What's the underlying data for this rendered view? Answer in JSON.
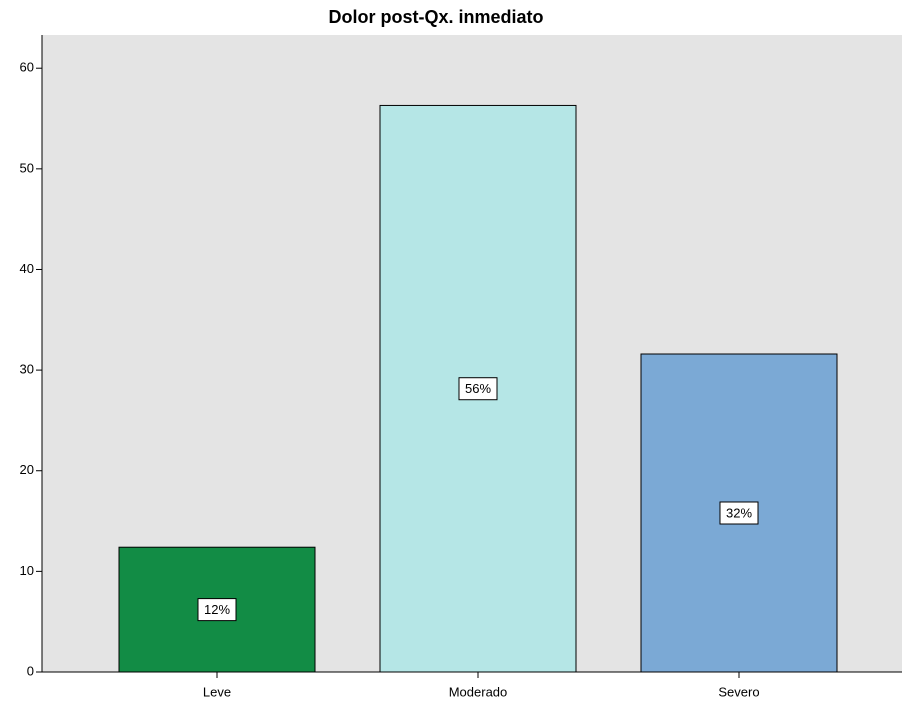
{
  "chart_data": {
    "type": "bar",
    "title": "Dolor post-Qx. inmediato",
    "categories": [
      "Leve",
      "Moderado",
      "Severo"
    ],
    "values": [
      12.4,
      56.3,
      31.6
    ],
    "value_labels": [
      "12%",
      "56%",
      "32%"
    ],
    "colors": [
      "#128c45",
      "#b5e6e6",
      "#7ba9d5"
    ],
    "ylim": [
      0,
      63.3
    ],
    "yticks": [
      0,
      10,
      20,
      30,
      40,
      50,
      60
    ]
  }
}
